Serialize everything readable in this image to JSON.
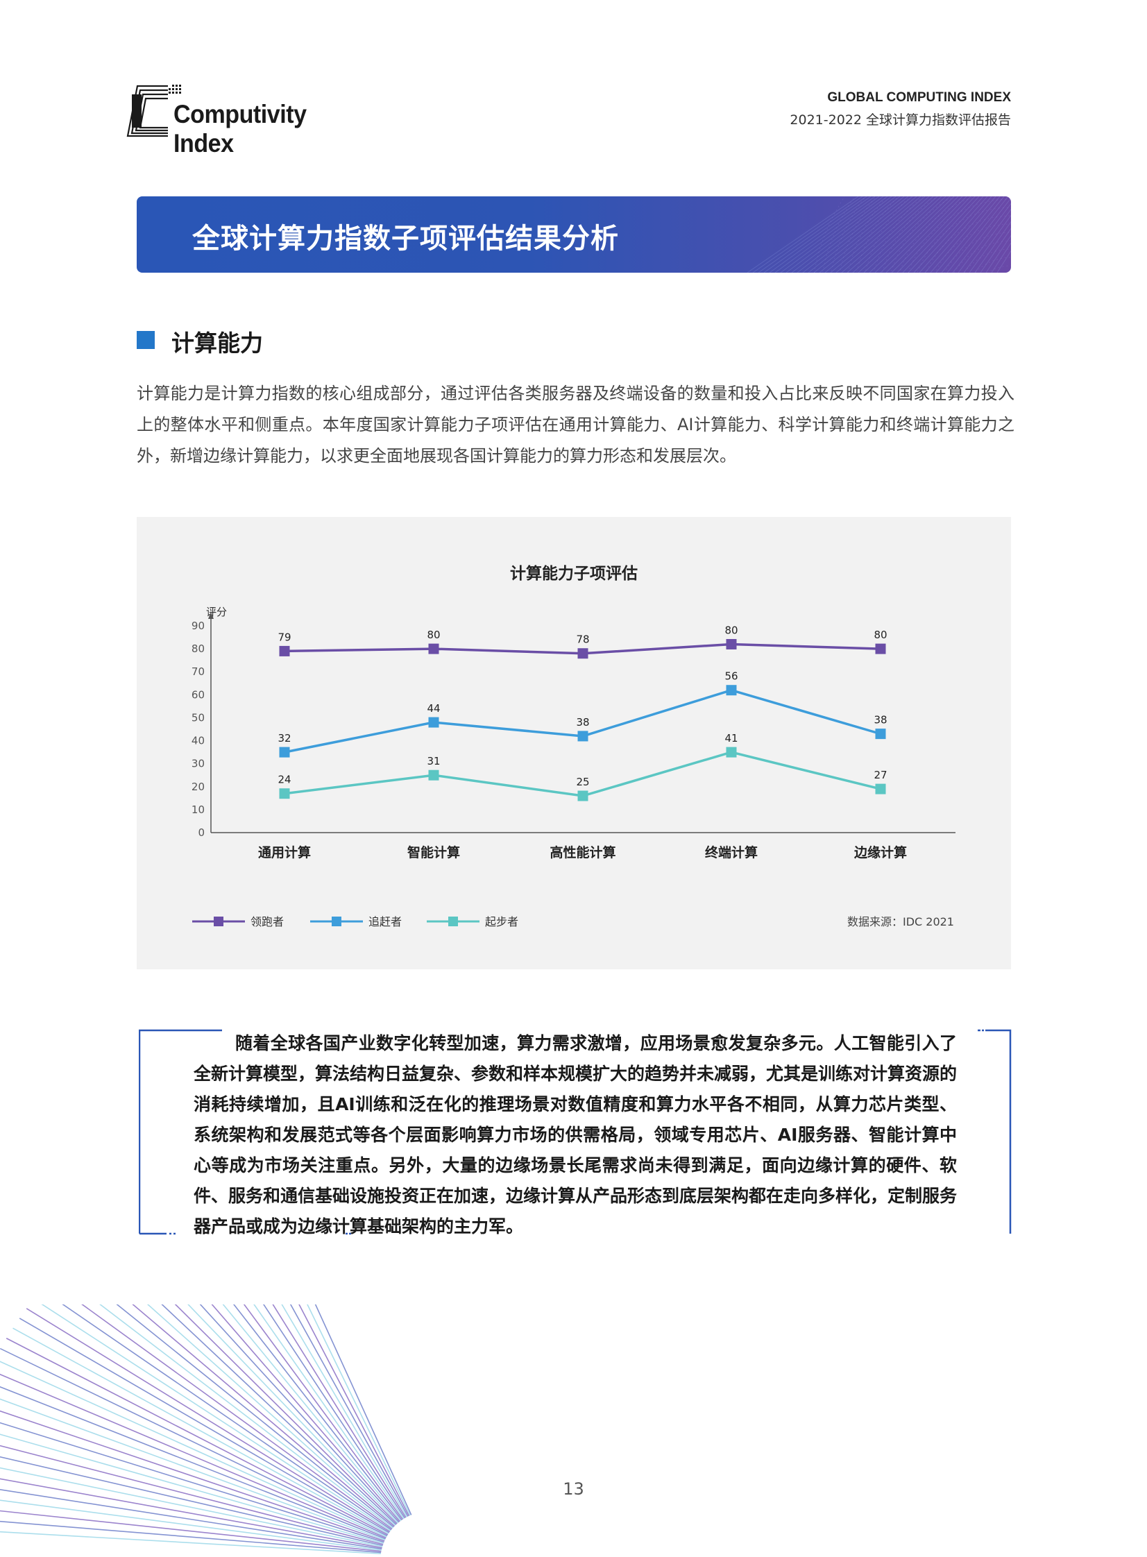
{
  "header": {
    "logo_text": "Computivity Index",
    "en_title": "GLOBAL COMPUTING INDEX",
    "cn_title": "2021-2022 全球计算力指数评估报告"
  },
  "banner": {
    "title": "全球计算力指数子项评估结果分析"
  },
  "section": {
    "title": "计算能力",
    "intro": "计算能力是计算力指数的核心组成部分，通过评估各类服务器及终端设备的数量和投入占比来反映不同国家在算力投入上的整体水平和侧重点。本年度国家计算能力子项评估在通用计算能力、AI计算能力、科学计算能力和终端计算能力之外，新增边缘计算能力，以求更全面地展现各国计算能力的算力形态和发展层次。"
  },
  "chart_data": {
    "type": "line",
    "title": "计算能力子项评估",
    "ylabel": "评分",
    "xlabel": "",
    "ylim": [
      0,
      90
    ],
    "yticks": [
      0,
      10,
      20,
      30,
      40,
      50,
      60,
      70,
      80,
      90
    ],
    "categories": [
      "通用计算",
      "智能计算",
      "高性能计算",
      "终端计算",
      "边缘计算"
    ],
    "series": [
      {
        "name": "领跑者",
        "color": "#6a4ea6",
        "values": [
          79,
          80,
          78,
          80,
          80
        ],
        "positions": [
          79,
          80,
          78,
          82,
          80
        ]
      },
      {
        "name": "追赶者",
        "color": "#3d9ddb",
        "values": [
          32,
          44,
          38,
          56,
          38
        ],
        "positions": [
          35,
          48,
          42,
          62,
          43
        ]
      },
      {
        "name": "起步者",
        "color": "#5bc6c3",
        "values": [
          24,
          31,
          25,
          41,
          27
        ],
        "positions": [
          17,
          25,
          16,
          35,
          19
        ]
      }
    ],
    "legend_position": "bottom-left",
    "source": "数据来源：IDC 2021",
    "grid": false
  },
  "callout": {
    "text": "随着全球各国产业数字化转型加速，算力需求激增，应用场景愈发复杂多元。人工智能引入了全新计算模型，算法结构日益复杂、参数和样本规模扩大的趋势并未减弱，尤其是训练对计算资源的消耗持续增加，且AI训练和泛在化的推理场景对数值精度和算力水平各不相同，从算力芯片类型、系统架构和发展范式等各个层面影响算力市场的供需格局，领域专用芯片、AI服务器、智能计算中心等成为市场关注重点。另外，大量的边缘场景长尾需求尚未得到满足，面向边缘计算的硬件、软件、服务和通信基础设施投资正在加速，边缘计算从产品形态到底层架构都在走向多样化，定制服务器产品或成为边缘计算基础架构的主力军。"
  },
  "footer": {
    "page_number": "13"
  },
  "colors": {
    "accent_blue": "#2377c9",
    "banner_start": "#2a56b6",
    "banner_end": "#6a49a8"
  }
}
